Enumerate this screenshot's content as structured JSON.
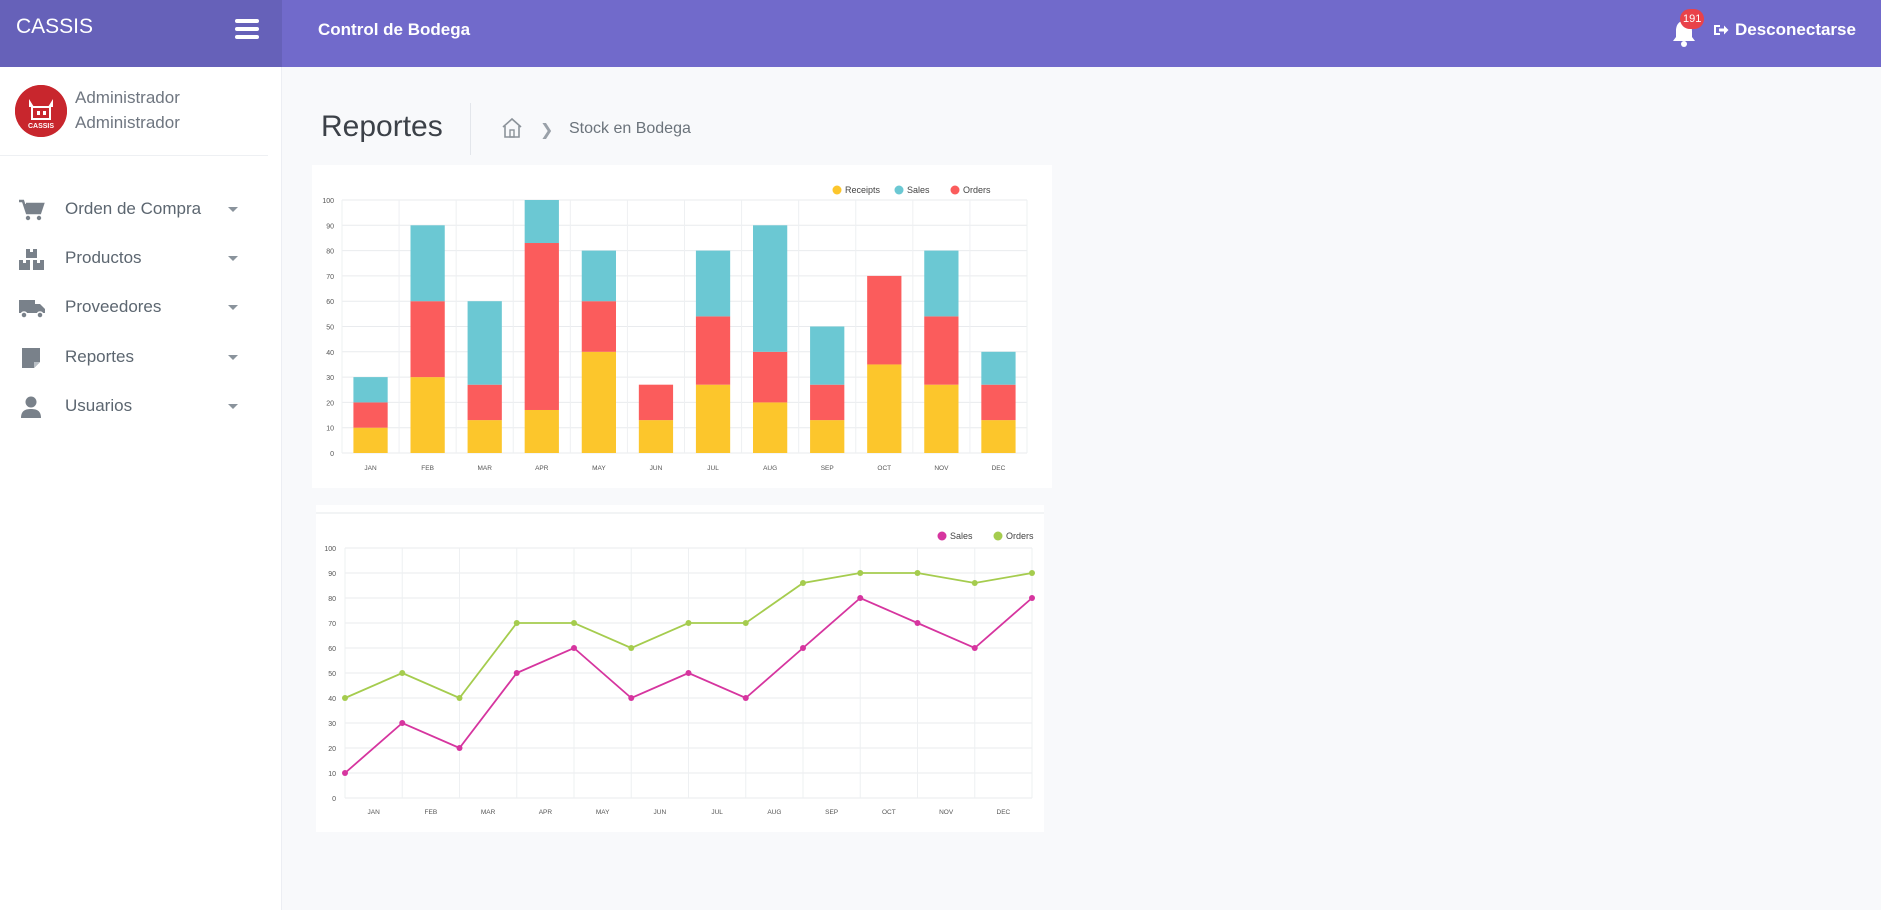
{
  "app": {
    "brand": "CASSIS",
    "page_name": "Control de Bodega",
    "notification_count": "191",
    "logout_label": "Desconectarse",
    "colors": {
      "topbar": "#716acb",
      "brand_bg": "#6661b9",
      "badge": "#e9424a"
    }
  },
  "user": {
    "line1": "Administrador",
    "line2": "Administrador",
    "logo_text": "CASSIS"
  },
  "sidebar": {
    "items": [
      {
        "label": "Orden de Compra",
        "icon": "cart-icon"
      },
      {
        "label": "Productos",
        "icon": "boxes-icon"
      },
      {
        "label": "Proveedores",
        "icon": "truck-icon"
      },
      {
        "label": "Reportes",
        "icon": "report-icon"
      },
      {
        "label": "Usuarios",
        "icon": "user-icon"
      }
    ]
  },
  "header": {
    "title": "Reportes",
    "breadcrumb": "Stock en Bodega"
  },
  "chart_data": [
    {
      "type": "bar",
      "stacked": true,
      "categories": [
        "JAN",
        "FEB",
        "MAR",
        "APR",
        "MAY",
        "JUN",
        "JUL",
        "AUG",
        "SEP",
        "OCT",
        "NOV",
        "DEC"
      ],
      "series": [
        {
          "name": "Receipts",
          "color": "#fcc62c",
          "values": [
            10,
            30,
            13,
            17,
            40,
            13,
            27,
            20,
            13,
            35,
            27,
            13
          ]
        },
        {
          "name": "Orders",
          "color": "#fb5c5c",
          "values": [
            10,
            30,
            14,
            66,
            20,
            14,
            27,
            20,
            14,
            35,
            27,
            14
          ]
        },
        {
          "name": "Sales",
          "color": "#6bc8d3",
          "values": [
            10,
            30,
            33,
            17,
            20,
            0,
            26,
            50,
            23,
            0,
            26,
            13
          ]
        }
      ],
      "legend_order": [
        "Receipts",
        "Sales",
        "Orders"
      ],
      "ylim": [
        0,
        100
      ],
      "yticks": [
        0,
        10,
        20,
        30,
        40,
        50,
        60,
        70,
        80,
        90,
        100
      ],
      "grid": true,
      "legend": "top-right"
    },
    {
      "type": "line",
      "categories": [
        "JAN",
        "FEB",
        "MAR",
        "APR",
        "MAY",
        "JUN",
        "JUL",
        "AUG",
        "SEP",
        "OCT",
        "NOV",
        "DEC"
      ],
      "series": [
        {
          "name": "Sales",
          "color": "#d6359f",
          "values": [
            10,
            30,
            20,
            50,
            60,
            40,
            50,
            40,
            60,
            80,
            70,
            60,
            80
          ],
          "x": [
            0,
            1,
            2,
            3,
            4,
            5,
            6,
            7,
            8,
            9,
            10,
            11,
            12
          ]
        },
        {
          "name": "Orders",
          "color": "#a5cc4e",
          "values": [
            40,
            50,
            40,
            70,
            70,
            60,
            70,
            70,
            86,
            90,
            90,
            86,
            90
          ],
          "x": [
            0,
            1,
            2,
            3,
            4,
            5,
            6,
            7,
            8,
            9,
            10,
            11,
            12
          ]
        }
      ],
      "ylim": [
        0,
        100
      ],
      "yticks": [
        0,
        10,
        20,
        30,
        40,
        50,
        60,
        70,
        80,
        90,
        100
      ],
      "grid": true,
      "legend": "top-right"
    }
  ]
}
